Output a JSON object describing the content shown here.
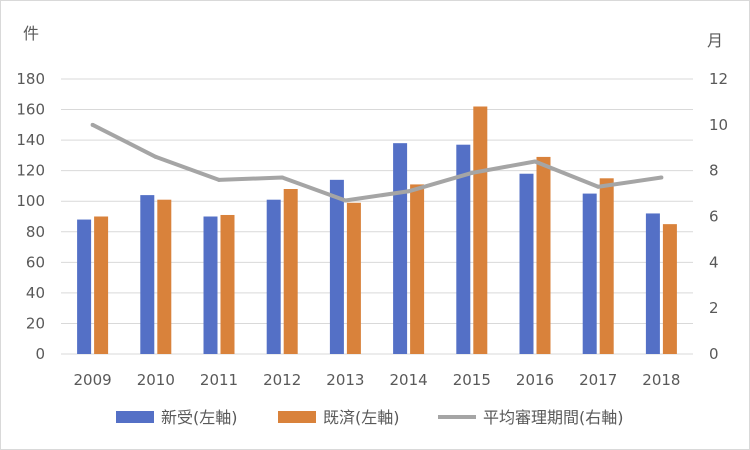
{
  "chart_data": {
    "type": "bar",
    "categories": [
      "2009",
      "2010",
      "2011",
      "2012",
      "2013",
      "2014",
      "2015",
      "2016",
      "2017",
      "2018"
    ],
    "series": [
      {
        "name": "新受(左軸)",
        "type": "bar",
        "axis": "left",
        "color": "#5470c6",
        "values": [
          88,
          104,
          90,
          101,
          114,
          138,
          137,
          118,
          105,
          92
        ]
      },
      {
        "name": "既済(左軸)",
        "type": "bar",
        "axis": "left",
        "color": "#d9823b",
        "values": [
          90,
          101,
          91,
          108,
          99,
          111,
          162,
          129,
          115,
          85
        ]
      },
      {
        "name": "平均審理期間(右軸)",
        "type": "line",
        "axis": "right",
        "color": "#a5a5a5",
        "values": [
          10.0,
          8.6,
          7.6,
          7.7,
          6.7,
          7.1,
          7.9,
          8.4,
          7.3,
          7.7
        ]
      }
    ],
    "left_axis": {
      "unit": "件",
      "min": 0,
      "max": 180,
      "ticks": [
        "0",
        "20",
        "40",
        "60",
        "80",
        "100",
        "120",
        "140",
        "160",
        "180"
      ]
    },
    "right_axis": {
      "unit": "月",
      "min": 0,
      "max": 12,
      "ticks": [
        "0",
        "2",
        "4",
        "6",
        "8",
        "10",
        "12"
      ]
    },
    "grid": true,
    "legend": "bottom"
  }
}
